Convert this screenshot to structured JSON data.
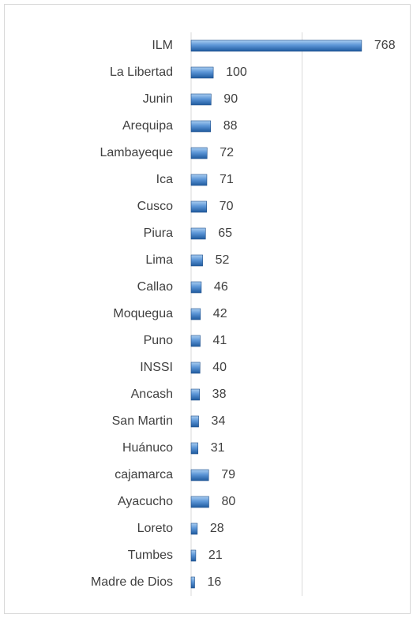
{
  "chart_data": {
    "type": "bar",
    "orientation": "horizontal",
    "categories": [
      "ILM",
      "La Libertad",
      "Junin",
      "Arequipa",
      "Lambayeque",
      "Ica",
      "Cusco",
      "Piura",
      "Lima",
      "Callao",
      "Moquegua",
      "Puno",
      "INSSI",
      "Ancash",
      "San Martin",
      "Huánuco",
      "cajamarca",
      "Ayacucho",
      "Loreto",
      "Tumbes",
      "Madre de Dios"
    ],
    "values": [
      768,
      100,
      90,
      88,
      72,
      71,
      70,
      65,
      52,
      46,
      42,
      41,
      40,
      38,
      34,
      31,
      79,
      80,
      28,
      21,
      16
    ],
    "color": "#3a7cc6",
    "xlim": [
      0,
      900
    ],
    "xticks": [
      0,
      500
    ],
    "grid": true
  }
}
